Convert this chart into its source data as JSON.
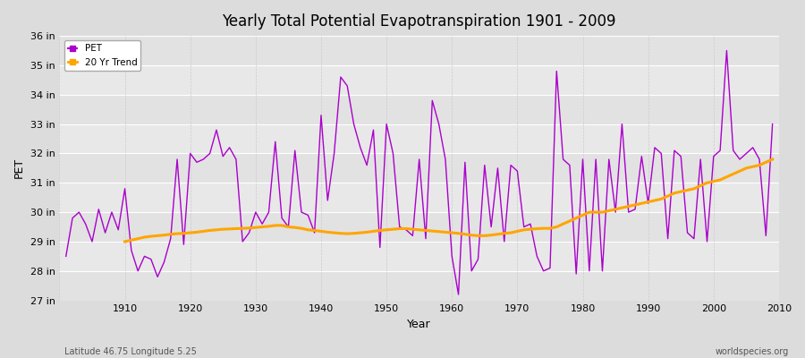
{
  "title": "Yearly Total Potential Evapotranspiration 1901 - 2009",
  "xlabel": "Year",
  "ylabel": "PET",
  "subtitle_left": "Latitude 46.75 Longitude 5.25",
  "subtitle_right": "worldspecies.org",
  "pet_color": "#AA00CC",
  "trend_color": "#FFA500",
  "background_color": "#DCDCDC",
  "plot_bg_color": "#E8E8E8",
  "ylim_min": 27,
  "ylim_max": 36,
  "years": [
    1901,
    1902,
    1903,
    1904,
    1905,
    1906,
    1907,
    1908,
    1909,
    1910,
    1911,
    1912,
    1913,
    1914,
    1915,
    1916,
    1917,
    1918,
    1919,
    1920,
    1921,
    1922,
    1923,
    1924,
    1925,
    1926,
    1927,
    1928,
    1929,
    1930,
    1931,
    1932,
    1933,
    1934,
    1935,
    1936,
    1937,
    1938,
    1939,
    1940,
    1941,
    1942,
    1943,
    1944,
    1945,
    1946,
    1947,
    1948,
    1949,
    1950,
    1951,
    1952,
    1953,
    1954,
    1955,
    1956,
    1957,
    1958,
    1959,
    1960,
    1961,
    1962,
    1963,
    1964,
    1965,
    1966,
    1967,
    1968,
    1969,
    1970,
    1971,
    1972,
    1973,
    1974,
    1975,
    1976,
    1977,
    1978,
    1979,
    1980,
    1981,
    1982,
    1983,
    1984,
    1985,
    1986,
    1987,
    1988,
    1989,
    1990,
    1991,
    1992,
    1993,
    1994,
    1995,
    1996,
    1997,
    1998,
    1999,
    2000,
    2001,
    2002,
    2003,
    2004,
    2005,
    2006,
    2007,
    2008,
    2009
  ],
  "pet_values": [
    28.5,
    29.8,
    30.0,
    29.6,
    29.0,
    30.1,
    29.3,
    30.0,
    29.4,
    30.8,
    28.7,
    28.0,
    28.5,
    28.4,
    27.8,
    28.3,
    29.1,
    31.8,
    28.9,
    32.0,
    31.7,
    31.8,
    32.0,
    32.8,
    31.9,
    32.2,
    31.8,
    29.0,
    29.3,
    30.0,
    29.6,
    30.0,
    32.4,
    29.8,
    29.5,
    32.1,
    30.0,
    29.9,
    29.3,
    33.3,
    30.4,
    32.0,
    34.6,
    34.3,
    33.0,
    32.2,
    31.6,
    32.8,
    28.8,
    33.0,
    32.0,
    29.5,
    29.4,
    29.2,
    31.8,
    29.1,
    33.8,
    33.0,
    31.8,
    28.5,
    27.2,
    31.7,
    28.0,
    28.4,
    31.6,
    29.5,
    31.5,
    29.0,
    31.6,
    31.4,
    29.5,
    29.6,
    28.5,
    28.0,
    28.1,
    34.8,
    31.8,
    31.6,
    27.9,
    31.8,
    28.0,
    31.8,
    28.0,
    31.8,
    30.0,
    33.0,
    30.0,
    30.1,
    31.9,
    30.3,
    32.2,
    32.0,
    29.1,
    32.1,
    31.9,
    29.3,
    29.1,
    31.8,
    29.0,
    31.9,
    32.1,
    35.5,
    32.1,
    31.8,
    32.0,
    32.2,
    31.8,
    29.2,
    33.0
  ],
  "trend_years": [
    1910,
    1911,
    1912,
    1913,
    1914,
    1915,
    1916,
    1917,
    1918,
    1919,
    1920,
    1921,
    1922,
    1923,
    1924,
    1925,
    1926,
    1927,
    1928,
    1929,
    1930,
    1931,
    1932,
    1933,
    1934,
    1935,
    1936,
    1937,
    1938,
    1939,
    1940,
    1941,
    1942,
    1943,
    1944,
    1945,
    1946,
    1947,
    1948,
    1949,
    1950,
    1951,
    1952,
    1953,
    1954,
    1955,
    1956,
    1957,
    1958,
    1959,
    1960,
    1961,
    1962,
    1963,
    1964,
    1965,
    1966,
    1967,
    1968,
    1969,
    1970,
    1971,
    1972,
    1973,
    1974,
    1975,
    1976,
    1977,
    1978,
    1979,
    1980,
    1981,
    1982,
    1983,
    1984,
    1985,
    1986,
    1987,
    1988,
    1989,
    1990,
    1991,
    1992,
    1993,
    1994,
    1995,
    1996,
    1997,
    1998,
    1999,
    2000,
    2001,
    2002,
    2003,
    2004,
    2005,
    2006,
    2007,
    2008,
    2009
  ],
  "trend_values": [
    29.0,
    29.05,
    29.1,
    29.15,
    29.18,
    29.2,
    29.22,
    29.25,
    29.27,
    29.28,
    29.3,
    29.32,
    29.35,
    29.38,
    29.4,
    29.42,
    29.43,
    29.44,
    29.45,
    29.46,
    29.48,
    29.5,
    29.52,
    29.55,
    29.55,
    29.5,
    29.48,
    29.45,
    29.4,
    29.38,
    29.35,
    29.32,
    29.3,
    29.28,
    29.27,
    29.28,
    29.3,
    29.32,
    29.35,
    29.38,
    29.4,
    29.42,
    29.44,
    29.44,
    29.42,
    29.4,
    29.38,
    29.36,
    29.34,
    29.32,
    29.3,
    29.28,
    29.25,
    29.22,
    29.2,
    29.2,
    29.22,
    29.25,
    29.28,
    29.3,
    29.35,
    29.4,
    29.42,
    29.44,
    29.45,
    29.45,
    29.5,
    29.6,
    29.7,
    29.8,
    29.9,
    30.0,
    30.0,
    30.0,
    30.05,
    30.1,
    30.15,
    30.2,
    30.25,
    30.3,
    30.35,
    30.4,
    30.45,
    30.55,
    30.65,
    30.7,
    30.75,
    30.8,
    30.9,
    31.0,
    31.05,
    31.1,
    31.2,
    31.3,
    31.4,
    31.5,
    31.55,
    31.6,
    31.7,
    31.8
  ]
}
